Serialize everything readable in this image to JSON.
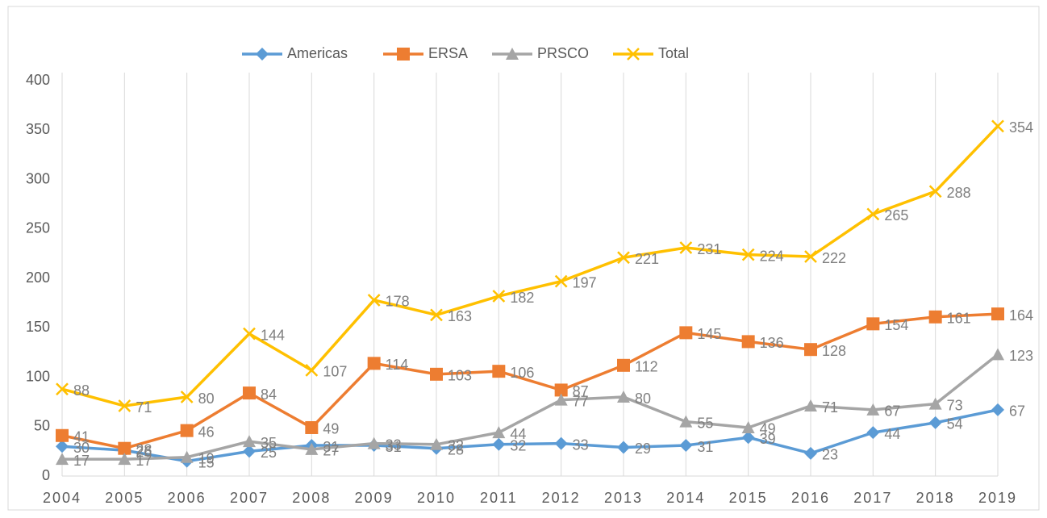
{
  "chart_data": {
    "type": "line",
    "categories": [
      "2004",
      "2005",
      "2006",
      "2007",
      "2008",
      "2009",
      "2010",
      "2011",
      "2012",
      "2013",
      "2014",
      "2015",
      "2016",
      "2017",
      "2018",
      "2019"
    ],
    "series": [
      {
        "name": "Americas",
        "color": "#5b9bd5",
        "marker": "diamond",
        "values": [
          30,
          26,
          15,
          25,
          31,
          31,
          28,
          32,
          33,
          29,
          31,
          39,
          23,
          44,
          54,
          67
        ]
      },
      {
        "name": "ERSA",
        "color": "#ed7d31",
        "marker": "square",
        "values": [
          41,
          28,
          46,
          84,
          49,
          114,
          103,
          106,
          87,
          112,
          145,
          136,
          128,
          154,
          161,
          164
        ]
      },
      {
        "name": "PRSCO",
        "color": "#a5a5a5",
        "marker": "triangle",
        "values": [
          17,
          17,
          19,
          35,
          27,
          33,
          32,
          44,
          77,
          80,
          55,
          49,
          71,
          67,
          73,
          123
        ]
      },
      {
        "name": "Total",
        "color": "#ffc000",
        "marker": "x",
        "values": [
          88,
          71,
          80,
          144,
          107,
          178,
          163,
          182,
          197,
          221,
          231,
          224,
          222,
          265,
          288,
          354
        ]
      }
    ],
    "ylim": [
      0,
      400
    ],
    "yticks": [
      0,
      50,
      100,
      150,
      200,
      250,
      300,
      350,
      400
    ],
    "grid": "vertical",
    "legend": "top"
  }
}
